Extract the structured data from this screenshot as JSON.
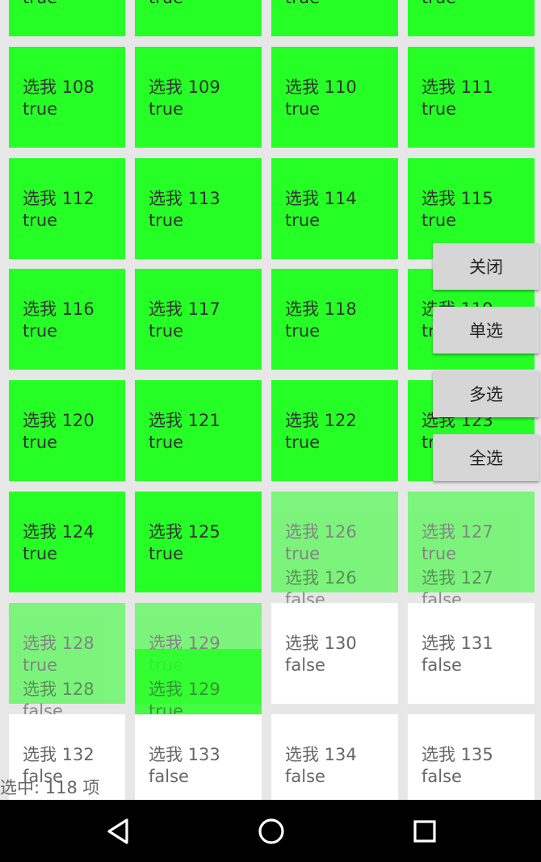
{
  "cell_label_prefix": "选我",
  "grid": {
    "rows": [
      {
        "cells": [
          {
            "label": "",
            "state": "true",
            "selected": true
          },
          {
            "label": "",
            "state": "true",
            "selected": true
          },
          {
            "label": "",
            "state": "true",
            "selected": true
          },
          {
            "label": "",
            "state": "true",
            "selected": true
          }
        ]
      },
      {
        "cells": [
          {
            "label": "选我 108",
            "state": "true",
            "selected": true
          },
          {
            "label": "选我 109",
            "state": "true",
            "selected": true
          },
          {
            "label": "选我 110",
            "state": "true",
            "selected": true
          },
          {
            "label": "选我 111",
            "state": "true",
            "selected": true
          }
        ]
      },
      {
        "cells": [
          {
            "label": "选我 112",
            "state": "true",
            "selected": true
          },
          {
            "label": "选我 113",
            "state": "true",
            "selected": true
          },
          {
            "label": "选我 114",
            "state": "true",
            "selected": true
          },
          {
            "label": "选我 115",
            "state": "true",
            "selected": true
          }
        ]
      },
      {
        "cells": [
          {
            "label": "选我 116",
            "state": "true",
            "selected": true
          },
          {
            "label": "选我 117",
            "state": "true",
            "selected": true
          },
          {
            "label": "选我 118",
            "state": "true",
            "selected": true
          },
          {
            "label": "选我 119",
            "state": "true",
            "selected": true
          }
        ]
      },
      {
        "cells": [
          {
            "label": "选我 120",
            "state": "true",
            "selected": true
          },
          {
            "label": "选我 121",
            "state": "true",
            "selected": true
          },
          {
            "label": "选我 122",
            "state": "true",
            "selected": true
          },
          {
            "label": "选我 123",
            "state": "true",
            "selected": true
          }
        ]
      },
      {
        "cells": [
          {
            "label": "选我 124",
            "state": "true",
            "selected": true
          },
          {
            "label": "选我 125",
            "state": "true",
            "selected": true
          },
          {
            "label": "选我 126",
            "state": "true",
            "selected": true,
            "transition": true,
            "ghost_label": "选我 126",
            "ghost_state": "false"
          },
          {
            "label": "选我 127",
            "state": "true",
            "selected": true,
            "transition": true,
            "ghost_label": "选我 127",
            "ghost_state": "false"
          }
        ]
      },
      {
        "cells": [
          {
            "label": "选我 128",
            "state": "true",
            "selected": true,
            "transition": true,
            "ghost_label": "选我 128",
            "ghost_state": "false"
          },
          {
            "label": "选我 129",
            "state": "true",
            "selected": true,
            "transition": true,
            "ghost_label": "选我 129",
            "ghost_state": "true"
          },
          {
            "label": "选我 130",
            "state": "false",
            "selected": false
          },
          {
            "label": "选我 131",
            "state": "false",
            "selected": false
          }
        ]
      },
      {
        "cells": [
          {
            "label": "选我 132",
            "state": "false",
            "selected": false
          },
          {
            "label": "选我 133",
            "state": "false",
            "selected": false
          },
          {
            "label": "选我 134",
            "state": "false",
            "selected": false
          },
          {
            "label": "选我 135",
            "state": "false",
            "selected": false
          }
        ]
      }
    ]
  },
  "menu": {
    "close_label": "关闭",
    "single_label": "单选",
    "multi_label": "多选",
    "all_label": "全选"
  },
  "status": {
    "text": "选中: 118 项"
  },
  "colors": {
    "selected": "#26ff26",
    "unselected": "#ffffff",
    "background": "#e7e7e7",
    "navbar": "#000000"
  },
  "navbar": {
    "icons": [
      "back-icon",
      "home-icon",
      "recents-icon"
    ]
  }
}
